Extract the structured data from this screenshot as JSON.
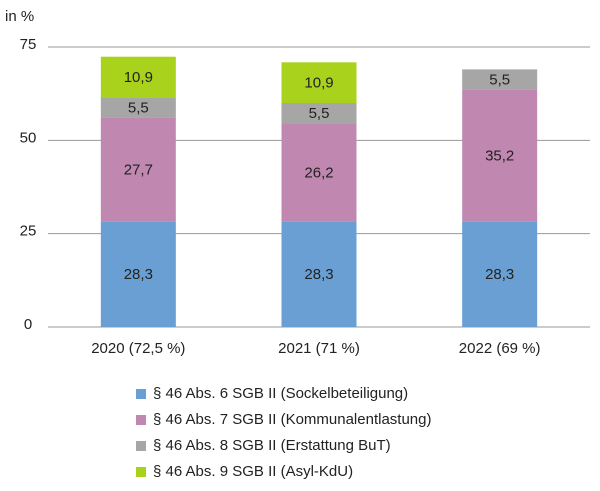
{
  "chart_data": {
    "type": "stacked_bar",
    "y_axis_label": "in %",
    "categories": [
      "2020 (72,5 %)",
      "2021 (71 %)",
      "2022 (69 %)"
    ],
    "series": [
      {
        "name": "§ 46 Abs. 6 SGB II (Sockelbeteiligung)",
        "color": "#6a9fd4",
        "values": [
          28.3,
          28.3,
          28.3
        ],
        "value_labels": [
          "28,3",
          "28,3",
          "28,3"
        ]
      },
      {
        "name": "§ 46 Abs. 7 SGB II (Kommunalentlastung)",
        "color": "#c088b0",
        "values": [
          27.7,
          26.2,
          35.2
        ],
        "value_labels": [
          "27,7",
          "26,2",
          "35,2"
        ]
      },
      {
        "name": "§ 46 Abs. 8 SGB II (Erstattung BuT)",
        "color": "#a6a6a6",
        "values": [
          5.5,
          5.5,
          5.5
        ],
        "value_labels": [
          "5,5",
          "5,5",
          "5,5"
        ]
      },
      {
        "name": "§ 46 Abs. 9 SGB II (Asyl-KdU)",
        "color": "#a8d21c",
        "values": [
          10.9,
          10.9,
          null
        ],
        "value_labels": [
          "10,9",
          "10,9",
          null
        ]
      }
    ],
    "ylim": [
      0,
      75
    ],
    "yticks": [
      0,
      25,
      50,
      75
    ],
    "grid": true,
    "legend": "bottom"
  }
}
